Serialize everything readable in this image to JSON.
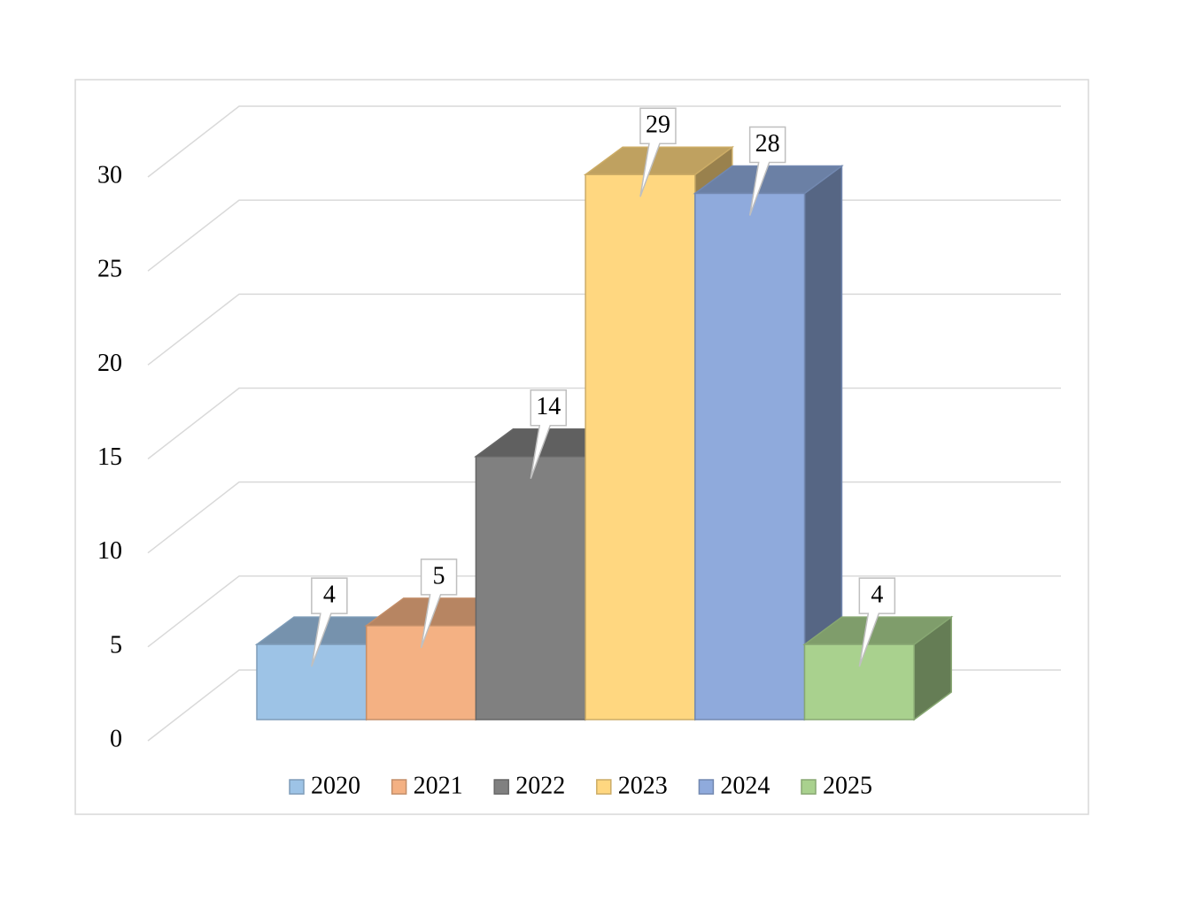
{
  "chart_data": {
    "type": "bar3d",
    "series": [
      {
        "name": "2020",
        "color": "#9dc3e6",
        "values": [
          4
        ]
      },
      {
        "name": "2021",
        "color": "#f4b183",
        "values": [
          5
        ]
      },
      {
        "name": "2022",
        "color": "#808080",
        "values": [
          14
        ]
      },
      {
        "name": "2023",
        "color": "#ffd780",
        "values": [
          29
        ]
      },
      {
        "name": "2024",
        "color": "#8faadc",
        "values": [
          28
        ]
      },
      {
        "name": "2025",
        "color": "#a9d18e",
        "values": [
          4
        ]
      }
    ],
    "ylim": [
      0,
      30
    ],
    "yticks": [
      0,
      5,
      10,
      15,
      20,
      25,
      30
    ],
    "grid": true,
    "data_labels": true,
    "legend": "bottom"
  }
}
